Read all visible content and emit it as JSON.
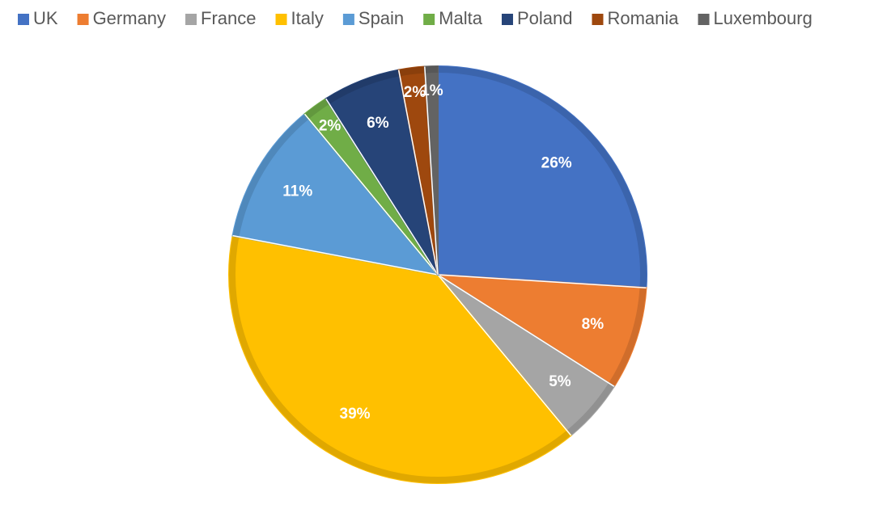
{
  "chart_data": {
    "type": "pie",
    "categories": [
      "UK",
      "Germany",
      "France",
      "Italy",
      "Spain",
      "Malta",
      "Poland",
      "Romania",
      "Luxembourg"
    ],
    "values": [
      26,
      8,
      5,
      39,
      11,
      2,
      6,
      2,
      1
    ],
    "value_labels": [
      "26%",
      "8%",
      "5%",
      "39%",
      "11%",
      "2%",
      "6%",
      "2%",
      "1%"
    ],
    "colors": [
      "#4472c4",
      "#ed7d31",
      "#a5a5a5",
      "#ffc000",
      "#5b9bd5",
      "#70ad47",
      "#264478",
      "#9e480e",
      "#636363"
    ],
    "legend": "top"
  }
}
